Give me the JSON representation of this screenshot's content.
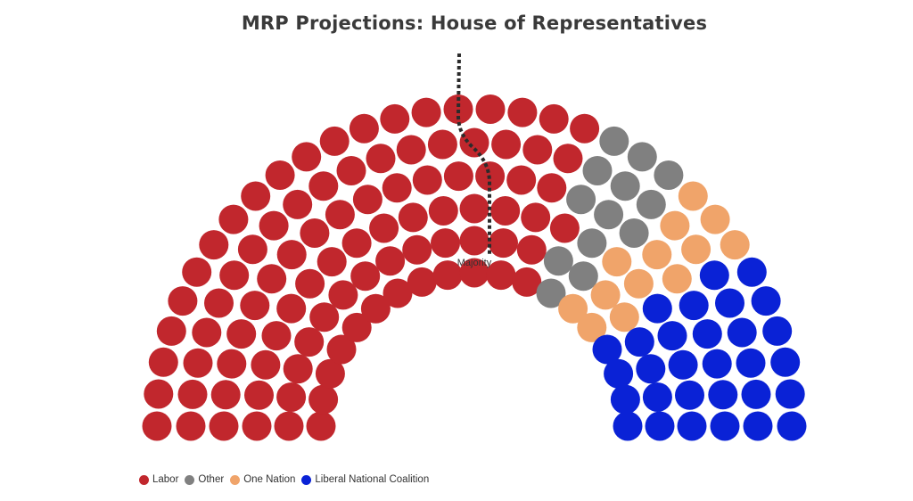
{
  "chart_data": {
    "type": "parliament",
    "title": "MRP Projections: House of Representatives",
    "total_seats": 150,
    "majority_label": "Majority",
    "majority_seats": 76,
    "series": [
      {
        "name": "Labor",
        "value": 94,
        "color": "#c1272d"
      },
      {
        "name": "Other",
        "value": 13,
        "color": "#808080"
      },
      {
        "name": "One Nation",
        "value": 13,
        "color": "#f0a46a"
      },
      {
        "name": "Liberal National Coalition",
        "value": 30,
        "color": "#0a22d6"
      }
    ],
    "legend_position": "bottom-left"
  }
}
